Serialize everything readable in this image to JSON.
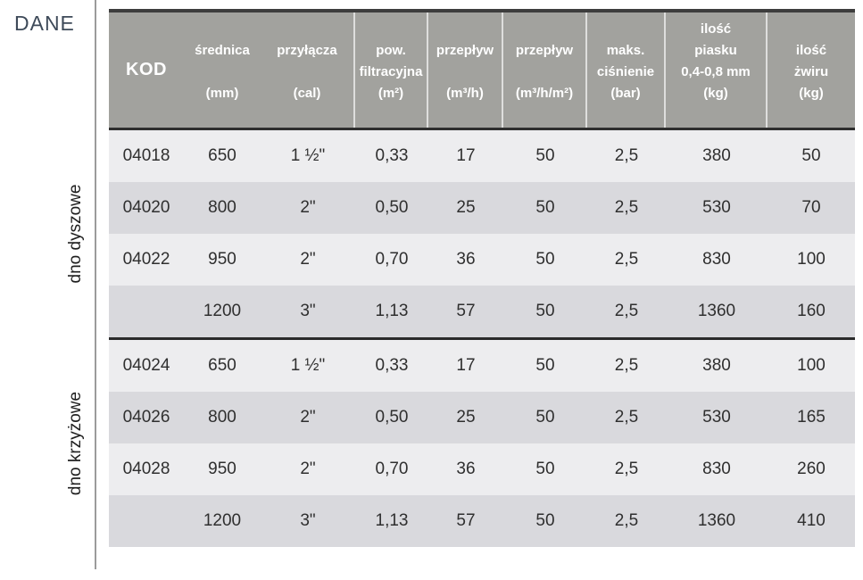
{
  "page": {
    "label": "DANE"
  },
  "colors": {
    "header_bg": "#a2a29e",
    "header_text": "#ffffff",
    "row_light": "#ededef",
    "row_dark": "#d9d9dd",
    "rule_dark": "#2e2e2e",
    "body_text": "#2f2f2f",
    "dane_label": "#3e4a59"
  },
  "table": {
    "header": {
      "columns": [
        {
          "title": "KOD"
        },
        {
          "lines": [
            "",
            "średnica",
            "",
            "(mm)"
          ]
        },
        {
          "lines": [
            "",
            "przyłącza",
            "",
            "(cal)"
          ]
        },
        {
          "lines": [
            "",
            "pow.",
            "filtracyjna",
            "(m²)"
          ]
        },
        {
          "lines": [
            "",
            "przepływ",
            "",
            "(m³/h)"
          ]
        },
        {
          "lines": [
            "",
            "przepływ",
            "",
            "(m³/h/m²)"
          ]
        },
        {
          "lines": [
            "",
            "maks.",
            "ciśnienie",
            "(bar)"
          ]
        },
        {
          "lines": [
            "ilość",
            "piasku",
            "0,4-0,8 mm",
            "(kg)"
          ]
        },
        {
          "lines": [
            "",
            "ilość",
            "żwiru",
            "(kg)"
          ]
        }
      ]
    },
    "groups": [
      {
        "label": "dno dyszowe",
        "rows": [
          [
            "04018",
            "650",
            "1 ½\"",
            "0,33",
            "17",
            "50",
            "2,5",
            "380",
            "50"
          ],
          [
            "04020",
            "800",
            "2\"",
            "0,50",
            "25",
            "50",
            "2,5",
            "530",
            "70"
          ],
          [
            "04022",
            "950",
            "2\"",
            "0,70",
            "36",
            "50",
            "2,5",
            "830",
            "100"
          ],
          [
            "",
            "1200",
            "3\"",
            "1,13",
            "57",
            "50",
            "2,5",
            "1360",
            "160"
          ]
        ]
      },
      {
        "label": "dno krzyżowe",
        "rows": [
          [
            "04024",
            "650",
            "1 ½\"",
            "0,33",
            "17",
            "50",
            "2,5",
            "380",
            "100"
          ],
          [
            "04026",
            "800",
            "2\"",
            "0,50",
            "25",
            "50",
            "2,5",
            "530",
            "165"
          ],
          [
            "04028",
            "950",
            "2\"",
            "0,70",
            "36",
            "50",
            "2,5",
            "830",
            "260"
          ],
          [
            "",
            "1200",
            "3\"",
            "1,13",
            "57",
            "50",
            "2,5",
            "1360",
            "410"
          ]
        ]
      }
    ]
  }
}
